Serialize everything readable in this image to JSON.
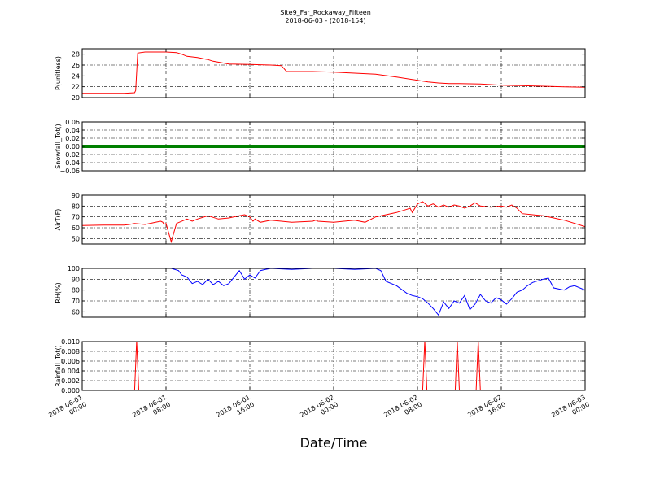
{
  "title": "Site9_Far_Rockaway_Fifteen",
  "subtitle": "2018-06-03 - (2018-154)",
  "xlabel": "Date/Time",
  "x_ticks": [
    {
      "t": 0,
      "line1": "2018-06-01",
      "line2": "00:00"
    },
    {
      "t": 8,
      "line1": "2018-06-01",
      "line2": "08:00"
    },
    {
      "t": 16,
      "line1": "2018-06-01",
      "line2": "16:00"
    },
    {
      "t": 24,
      "line1": "2018-06-02",
      "line2": "00:00"
    },
    {
      "t": 32,
      "line1": "2018-06-02",
      "line2": "08:00"
    },
    {
      "t": 40,
      "line1": "2018-06-02",
      "line2": "16:00"
    },
    {
      "t": 48,
      "line1": "2018-06-03",
      "line2": "00:00"
    }
  ],
  "chart_data": [
    {
      "type": "line",
      "ylabel": "P(unitless)",
      "ylim": [
        20,
        29
      ],
      "yticks": [
        20,
        22,
        24,
        26,
        28
      ],
      "ytick_labels": [
        "20",
        "22",
        "24",
        "26",
        "28"
      ],
      "color": "#ff0000",
      "grid": true,
      "x": [
        0,
        2,
        4,
        5,
        5.1,
        5.3,
        6,
        8,
        9,
        9.5,
        10,
        11,
        12,
        12.5,
        14,
        16,
        18,
        19,
        19.2,
        19.5,
        22,
        24,
        26,
        28,
        30,
        32,
        33,
        34,
        35,
        36,
        38,
        40,
        44,
        46,
        48
      ],
      "y": [
        20.8,
        20.8,
        20.8,
        20.9,
        21.3,
        28.2,
        28.4,
        28.4,
        28.3,
        28.0,
        27.6,
        27.4,
        27.0,
        26.7,
        26.2,
        26.1,
        26.0,
        25.9,
        25.5,
        24.8,
        24.8,
        24.7,
        24.5,
        24.3,
        23.8,
        23.2,
        22.9,
        22.7,
        22.6,
        22.6,
        22.5,
        22.3,
        22.1,
        22.0,
        21.9
      ]
    },
    {
      "type": "line",
      "ylabel": "Snowfall_Tot()",
      "ylim": [
        -0.06,
        0.06
      ],
      "yticks": [
        -0.06,
        -0.04,
        -0.02,
        0.0,
        0.02,
        0.04,
        0.06
      ],
      "ytick_labels": [
        "−0.06",
        "−0.04",
        "−0.02",
        "0.00",
        "0.02",
        "0.04",
        "0.06"
      ],
      "color": "#008000",
      "grid": true,
      "x": [
        0,
        48
      ],
      "y": [
        0,
        0
      ]
    },
    {
      "type": "line",
      "ylabel": "AirT(F)",
      "ylim": [
        45,
        90
      ],
      "yticks": [
        50,
        60,
        70,
        80,
        90
      ],
      "ytick_labels": [
        "50",
        "60",
        "70",
        "80",
        "90"
      ],
      "color": "#ff0000",
      "grid": true,
      "x": [
        0,
        2,
        4,
        4.5,
        5,
        6,
        7,
        7.5,
        7.7,
        7.8,
        8,
        8.5,
        9,
        10,
        10.5,
        11,
        12,
        13,
        14,
        15,
        15.5,
        16,
        16.3,
        16.5,
        17,
        18,
        20,
        22,
        22.3,
        22.5,
        24,
        25,
        26,
        26.5,
        27,
        28,
        30,
        31,
        31.3,
        31.5,
        32,
        32.5,
        33,
        33.5,
        34,
        34.5,
        35,
        35.5,
        36,
        36.5,
        37,
        37.5,
        38,
        39,
        40,
        40.5,
        41,
        41.5,
        42,
        43,
        44,
        45,
        46,
        48
      ],
      "y": [
        62,
        62.5,
        62.5,
        63,
        64,
        63,
        65,
        66,
        65,
        63,
        64,
        47,
        64,
        68,
        66,
        68,
        71,
        68,
        69,
        71,
        72,
        70,
        66,
        68,
        65,
        67,
        65,
        66,
        67,
        66,
        65,
        66,
        67,
        66,
        65,
        70,
        74,
        77,
        78,
        74,
        82,
        84,
        80,
        82,
        79,
        81,
        79,
        81,
        80,
        78,
        80,
        83,
        80,
        79,
        80,
        79,
        81,
        78,
        73,
        72,
        71,
        69,
        67,
        61
      ]
    },
    {
      "type": "line",
      "ylabel": "RH(%)",
      "ylim": [
        55,
        100
      ],
      "yticks": [
        60,
        70,
        80,
        90,
        100
      ],
      "ytick_labels": [
        "60",
        "70",
        "80",
        "90",
        "100"
      ],
      "color": "#0000ff",
      "grid": true,
      "x": [
        8.5,
        9.2,
        9.5,
        10,
        10.5,
        11,
        11.5,
        12,
        12.5,
        13,
        13.5,
        14,
        14.5,
        15,
        15.5,
        16,
        16.5,
        17,
        17.5,
        18,
        20,
        22,
        24,
        26,
        28,
        28.5,
        29,
        30,
        31,
        31.5,
        32,
        32.5,
        33,
        33.5,
        34,
        34.5,
        35,
        35.5,
        36,
        36.5,
        37,
        37.5,
        38,
        38.5,
        39,
        39.5,
        40,
        40.5,
        41,
        41.5,
        42,
        42.5,
        43,
        44,
        44.5,
        45,
        46,
        46.5,
        47,
        48
      ],
      "y": [
        100,
        98,
        94,
        92,
        86,
        88,
        85,
        90,
        85,
        88,
        84,
        86,
        92,
        98,
        90,
        94,
        91,
        98,
        99,
        100,
        99,
        100,
        100,
        99,
        100,
        98,
        88,
        84,
        77,
        75,
        74,
        72,
        68,
        63,
        57,
        69,
        63,
        70,
        68,
        75,
        62,
        67,
        76,
        70,
        68,
        73,
        71,
        67,
        72,
        78,
        80,
        84,
        87,
        90,
        91,
        82,
        80,
        83,
        84,
        80
      ]
    },
    {
      "type": "line",
      "ylabel": "Rainfall_Tot()",
      "ylim": [
        0,
        0.01
      ],
      "yticks": [
        0,
        0.002,
        0.004,
        0.006,
        0.008,
        0.01
      ],
      "ytick_labels": [
        "0.000",
        "0.002",
        "0.004",
        "0.006",
        "0.008",
        "0.010"
      ],
      "color": "#ff0000",
      "grid": true,
      "x": [
        0,
        5,
        5.2,
        5.4,
        32.5,
        32.7,
        32.9,
        35.6,
        35.8,
        36,
        37.6,
        37.8,
        38,
        48
      ],
      "y": [
        0,
        0,
        0.0102,
        0,
        0,
        0.0102,
        0,
        0,
        0.0102,
        0,
        0,
        0.0102,
        0,
        0
      ]
    }
  ]
}
